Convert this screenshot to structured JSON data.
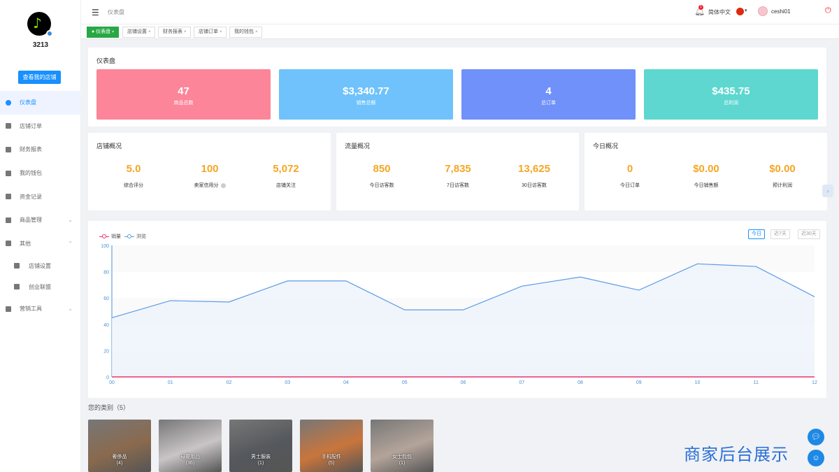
{
  "sidebar": {
    "shop_name": "3213",
    "view_shop_button": "查看我的店铺",
    "items": [
      {
        "label": "仪表盘",
        "icon": "dashboard-icon",
        "active": true
      },
      {
        "label": "店铺订单",
        "icon": "orders-icon"
      },
      {
        "label": "财务报表",
        "icon": "report-icon"
      },
      {
        "label": "我的钱包",
        "icon": "wallet-icon"
      },
      {
        "label": "资金记录",
        "icon": "funds-icon"
      },
      {
        "label": "商品管理",
        "icon": "goods-icon",
        "arrow": "⌄"
      },
      {
        "label": "其他",
        "icon": "other-icon",
        "arrow": "⌃"
      },
      {
        "label": "店铺设置",
        "icon": "gear-icon",
        "sub": true
      },
      {
        "label": "创业联盟",
        "icon": "flag-icon",
        "sub": true
      },
      {
        "label": "营销工具",
        "icon": "marketing-icon",
        "arrow": "⌄"
      }
    ]
  },
  "header": {
    "breadcrumb": "仪表盘",
    "notification_count": "1",
    "language": "简体中文",
    "username": "ceshi01"
  },
  "tabs": [
    {
      "label": "● 仪表盘",
      "close": "▾",
      "active": true
    },
    {
      "label": "店铺设置",
      "close": "×"
    },
    {
      "label": "财务报表",
      "close": "×"
    },
    {
      "label": "店铺订单",
      "close": "×"
    },
    {
      "label": "我的钱包",
      "close": "×"
    }
  ],
  "dashboard": {
    "title": "仪表盘",
    "stats": [
      {
        "value": "47",
        "label": "商品总数",
        "color": "#fd8599"
      },
      {
        "value": "$3,340.77",
        "label": "销售总额",
        "color": "#6fc2fb"
      },
      {
        "value": "4",
        "label": "总订单",
        "color": "#7091fa"
      },
      {
        "value": "$435.75",
        "label": "总利润",
        "color": "#5dd7d0"
      }
    ]
  },
  "overviews": [
    {
      "title": "店铺概况",
      "items": [
        {
          "value": "5.0",
          "label": "综合评分"
        },
        {
          "value": "100",
          "label": "卖家信用分",
          "help": true
        },
        {
          "value": "5,072",
          "label": "店铺关注"
        }
      ]
    },
    {
      "title": "流量概况",
      "items": [
        {
          "value": "850",
          "label": "今日访客数"
        },
        {
          "value": "7,835",
          "label": "7日访客数"
        },
        {
          "value": "13,625",
          "label": "30日访客数"
        }
      ]
    },
    {
      "title": "今日概况",
      "items": [
        {
          "value": "0",
          "label": "今日订单"
        },
        {
          "value": "$0.00",
          "label": "今日销售额"
        },
        {
          "value": "$0.00",
          "label": "预计利润"
        }
      ]
    }
  ],
  "range_buttons": [
    "今日",
    "近7天",
    "近30天"
  ],
  "chart_data": {
    "type": "line",
    "x": [
      "00",
      "01",
      "02",
      "03",
      "04",
      "05",
      "06",
      "07",
      "08",
      "09",
      "10",
      "11",
      "12"
    ],
    "series": [
      {
        "name": "销量",
        "color": "#e8336e",
        "values": [
          0,
          0,
          0,
          0,
          0,
          0,
          0,
          0,
          0,
          0,
          0,
          0,
          0
        ]
      },
      {
        "name": "浏览",
        "color": "#5b9be6",
        "values": [
          45,
          58,
          57,
          73,
          73,
          51,
          51,
          69,
          76,
          66,
          86,
          84,
          61
        ]
      }
    ],
    "yticks": [
      0,
      20,
      40,
      60,
      80,
      100
    ],
    "ylim": [
      0,
      100
    ],
    "legend": "top-left"
  },
  "categories": {
    "title": "您的类别（5）",
    "items": [
      {
        "name": "奢侈品",
        "count": "(4)",
        "color": "#8a6a4e"
      },
      {
        "name": "母婴用品",
        "count": "(36)",
        "color": "#c9c4c6"
      },
      {
        "name": "男士服装",
        "count": "(1)",
        "color": "#55585c"
      },
      {
        "name": "手机配件",
        "count": "(5)",
        "color": "#c9753c"
      },
      {
        "name": "女士包包",
        "count": "(1)",
        "color": "#b3a49a"
      }
    ]
  },
  "watermark": "商家后台展示"
}
